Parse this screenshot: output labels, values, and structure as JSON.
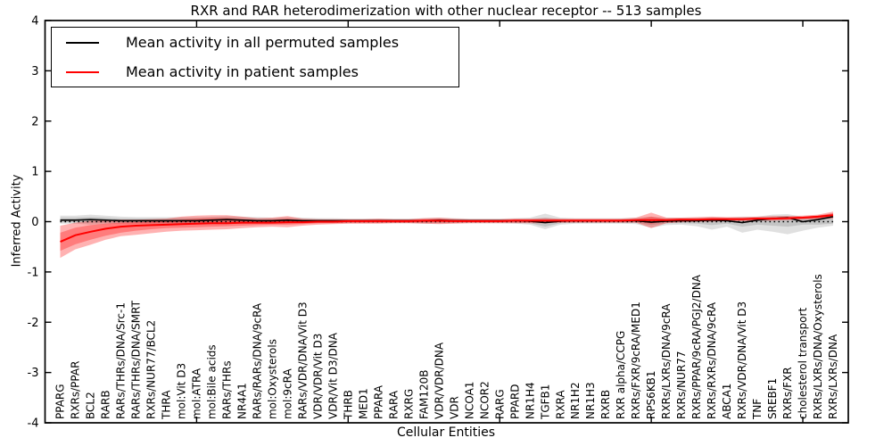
{
  "title": "RXR and RAR heterodimerization with other nuclear receptor -- 513 samples",
  "xlabel": "Cellular Entities",
  "ylabel": "Inferred Activity",
  "legend": {
    "items": [
      {
        "label": "Mean activity in all permuted samples",
        "color": "#000000"
      },
      {
        "label": "Mean activity in patient samples",
        "color": "#ff0000"
      }
    ]
  },
  "chart_data": {
    "type": "line",
    "title": "RXR and RAR heterodimerization with other nuclear receptor -- 513 samples",
    "xlabel": "Cellular Entities",
    "ylabel": "Inferred Activity",
    "ylim": [
      -4,
      4
    ],
    "yticks": [
      -4,
      -3,
      -2,
      -1,
      0,
      1,
      2,
      3,
      4
    ],
    "xticks": [
      10,
      20,
      30,
      40,
      50
    ],
    "grid": false,
    "legend_position": "upper left",
    "zero_line": "dotted-black-at-0",
    "categories": [
      "PPARG",
      "RXRs/PPAR",
      "BCL2",
      "RARB",
      "RARs/THRs/DNA/Src-1",
      "RARs/THRs/DNA/SMRT",
      "RXRs/NUR77/BCL2",
      "THRA",
      "mol:Vit D3",
      "mol:ATRA",
      "mol:Bile acids",
      "RARs/THRs",
      "NR4A1",
      "RARs/RARs/DNA/9cRA",
      "mol:Oxysterols",
      "mol:9cRA",
      "RARs/VDR/DNA/Vit D3",
      "VDR/VDR/Vit D3",
      "VDR/Vit D3/DNA",
      "THRB",
      "MED1",
      "PPARA",
      "RARA",
      "RXRG",
      "FAM120B",
      "VDR/VDR/DNA",
      "VDR",
      "NCOA1",
      "NCOR2",
      "RARG",
      "PPARD",
      "NR1H4",
      "TGFB1",
      "RXRA",
      "NR1H2",
      "NR1H3",
      "RXRB",
      "RXR alpha/CCPG",
      "RXRs/FXR/9cRA/MED1",
      "RPS6KB1",
      "RXRs/LXRs/DNA/9cRA",
      "RXRs/NUR77",
      "RXRs/PPAR/9cRA/PGJ2/DNA",
      "RXRs/RXRs/DNA/9cRA",
      "ABCA1",
      "RXRs/VDR/DNA/Vit D3",
      "TNF",
      "SREBF1",
      "RXRs/FXR",
      "cholesterol transport",
      "RXRs/LXRs/DNA/Oxysterols",
      "RXRs/LXRs/DNA"
    ],
    "series": [
      {
        "name": "Mean activity in all permuted samples",
        "color": "#000000",
        "band_fill": "rgba(0,0,0,0.12)",
        "values": [
          0.03,
          0.03,
          0.04,
          0.03,
          0.02,
          0.02,
          0.02,
          0.02,
          0.02,
          0.02,
          0.03,
          0.04,
          0.03,
          0.02,
          0.02,
          0.03,
          0.02,
          0.02,
          0.02,
          0.02,
          0.02,
          0.02,
          0.02,
          0.02,
          0.02,
          0.03,
          0.02,
          0.02,
          0.02,
          0.02,
          0.02,
          0.01,
          -0.02,
          0.01,
          0.02,
          0.02,
          0.02,
          0.02,
          0.02,
          -0.01,
          0.01,
          0.02,
          0.02,
          0.03,
          0.02,
          -0.02,
          0.03,
          0.06,
          0.08,
          0.0,
          0.04,
          0.1
        ],
        "band_inner_upper": [
          0.08,
          0.08,
          0.09,
          0.08,
          0.06,
          0.06,
          0.06,
          0.06,
          0.06,
          0.06,
          0.07,
          0.08,
          0.07,
          0.06,
          0.05,
          0.06,
          0.05,
          0.05,
          0.04,
          0.04,
          0.04,
          0.04,
          0.04,
          0.04,
          0.05,
          0.05,
          0.05,
          0.04,
          0.04,
          0.04,
          0.05,
          0.05,
          0.08,
          0.05,
          0.04,
          0.04,
          0.04,
          0.05,
          0.05,
          0.05,
          0.05,
          0.05,
          0.05,
          0.06,
          0.06,
          0.05,
          0.06,
          0.1,
          0.11,
          0.06,
          0.08,
          0.13
        ],
        "band_inner_lower": [
          -0.01,
          -0.01,
          -0.02,
          -0.02,
          -0.02,
          -0.02,
          -0.02,
          -0.02,
          -0.02,
          -0.02,
          -0.02,
          -0.02,
          -0.02,
          -0.02,
          -0.02,
          -0.02,
          -0.02,
          -0.01,
          -0.01,
          -0.01,
          -0.01,
          -0.01,
          -0.01,
          -0.01,
          -0.02,
          -0.02,
          -0.02,
          -0.01,
          -0.01,
          -0.01,
          -0.02,
          -0.03,
          -0.1,
          -0.03,
          -0.02,
          -0.02,
          -0.02,
          -0.02,
          -0.02,
          -0.07,
          -0.03,
          -0.03,
          -0.04,
          -0.07,
          -0.04,
          -0.1,
          -0.06,
          -0.08,
          -0.1,
          -0.06,
          -0.06,
          -0.04
        ],
        "band_outer_upper": [
          0.12,
          0.12,
          0.14,
          0.12,
          0.1,
          0.09,
          0.09,
          0.09,
          0.09,
          0.09,
          0.1,
          0.11,
          0.1,
          0.09,
          0.08,
          0.09,
          0.08,
          0.07,
          0.07,
          0.06,
          0.06,
          0.06,
          0.06,
          0.06,
          0.07,
          0.08,
          0.07,
          0.06,
          0.06,
          0.06,
          0.07,
          0.08,
          0.16,
          0.08,
          0.07,
          0.07,
          0.07,
          0.07,
          0.08,
          0.1,
          0.08,
          0.08,
          0.08,
          0.09,
          0.08,
          0.1,
          0.1,
          0.14,
          0.15,
          0.1,
          0.12,
          0.16
        ],
        "band_outer_lower": [
          -0.04,
          -0.04,
          -0.06,
          -0.05,
          -0.04,
          -0.04,
          -0.04,
          -0.04,
          -0.04,
          -0.04,
          -0.05,
          -0.05,
          -0.04,
          -0.04,
          -0.04,
          -0.04,
          -0.03,
          -0.03,
          -0.03,
          -0.03,
          -0.03,
          -0.03,
          -0.03,
          -0.03,
          -0.04,
          -0.04,
          -0.03,
          -0.03,
          -0.03,
          -0.03,
          -0.04,
          -0.06,
          -0.15,
          -0.06,
          -0.04,
          -0.04,
          -0.04,
          -0.04,
          -0.05,
          -0.12,
          -0.07,
          -0.06,
          -0.09,
          -0.16,
          -0.1,
          -0.22,
          -0.16,
          -0.2,
          -0.25,
          -0.18,
          -0.12,
          -0.08
        ]
      },
      {
        "name": "Mean activity in patient samples",
        "color": "#ff0000",
        "band_fill": "rgba(255,0,0,0.30)",
        "values": [
          -0.4,
          -0.27,
          -0.2,
          -0.14,
          -0.1,
          -0.08,
          -0.07,
          -0.06,
          -0.05,
          -0.04,
          -0.03,
          -0.03,
          -0.02,
          -0.02,
          -0.02,
          -0.01,
          -0.01,
          0.0,
          0.0,
          0.01,
          0.01,
          0.01,
          0.01,
          0.01,
          0.02,
          0.02,
          0.01,
          0.01,
          0.01,
          0.01,
          0.02,
          0.02,
          0.02,
          0.02,
          0.02,
          0.02,
          0.02,
          0.02,
          0.03,
          0.03,
          0.03,
          0.04,
          0.04,
          0.05,
          0.05,
          0.05,
          0.06,
          0.06,
          0.07,
          0.08,
          0.1,
          0.13
        ],
        "band_inner_upper": [
          -0.22,
          -0.12,
          -0.07,
          -0.04,
          -0.02,
          -0.01,
          0.0,
          0.01,
          0.04,
          0.06,
          0.07,
          0.07,
          0.05,
          0.03,
          0.04,
          0.06,
          0.03,
          0.02,
          0.02,
          0.03,
          0.03,
          0.03,
          0.03,
          0.03,
          0.04,
          0.05,
          0.03,
          0.03,
          0.03,
          0.03,
          0.04,
          0.04,
          0.04,
          0.04,
          0.04,
          0.04,
          0.04,
          0.04,
          0.05,
          0.1,
          0.05,
          0.06,
          0.06,
          0.07,
          0.07,
          0.07,
          0.08,
          0.08,
          0.09,
          0.1,
          0.12,
          0.17
        ],
        "band_inner_lower": [
          -0.58,
          -0.45,
          -0.36,
          -0.28,
          -0.22,
          -0.18,
          -0.15,
          -0.13,
          -0.12,
          -0.11,
          -0.1,
          -0.09,
          -0.08,
          -0.07,
          -0.06,
          -0.06,
          -0.05,
          -0.03,
          -0.03,
          -0.02,
          -0.02,
          -0.02,
          -0.02,
          -0.02,
          -0.01,
          -0.01,
          -0.01,
          -0.01,
          -0.01,
          -0.01,
          0.0,
          0.0,
          0.0,
          0.0,
          0.0,
          0.0,
          0.0,
          0.0,
          0.01,
          -0.04,
          0.01,
          0.02,
          0.02,
          0.03,
          0.03,
          0.03,
          0.04,
          0.04,
          0.05,
          0.06,
          0.07,
          0.09
        ],
        "band_outer_upper": [
          -0.08,
          -0.02,
          0.02,
          0.03,
          0.04,
          0.04,
          0.05,
          0.06,
          0.1,
          0.12,
          0.13,
          0.13,
          0.1,
          0.07,
          0.08,
          0.11,
          0.06,
          0.05,
          0.05,
          0.05,
          0.05,
          0.06,
          0.05,
          0.05,
          0.07,
          0.08,
          0.06,
          0.05,
          0.05,
          0.05,
          0.06,
          0.06,
          0.07,
          0.06,
          0.06,
          0.06,
          0.06,
          0.06,
          0.08,
          0.18,
          0.08,
          0.08,
          0.09,
          0.1,
          0.09,
          0.09,
          0.1,
          0.11,
          0.11,
          0.12,
          0.14,
          0.2
        ],
        "band_outer_lower": [
          -0.72,
          -0.55,
          -0.46,
          -0.36,
          -0.29,
          -0.26,
          -0.23,
          -0.2,
          -0.18,
          -0.17,
          -0.16,
          -0.15,
          -0.13,
          -0.11,
          -0.1,
          -0.11,
          -0.08,
          -0.06,
          -0.05,
          -0.04,
          -0.04,
          -0.04,
          -0.03,
          -0.03,
          -0.04,
          -0.05,
          -0.04,
          -0.03,
          -0.03,
          -0.03,
          -0.03,
          -0.03,
          -0.03,
          -0.02,
          -0.02,
          -0.02,
          -0.02,
          -0.02,
          -0.02,
          -0.13,
          -0.03,
          -0.01,
          0.0,
          0.0,
          0.01,
          0.01,
          0.02,
          0.02,
          0.03,
          0.04,
          0.05,
          0.06
        ]
      }
    ]
  }
}
